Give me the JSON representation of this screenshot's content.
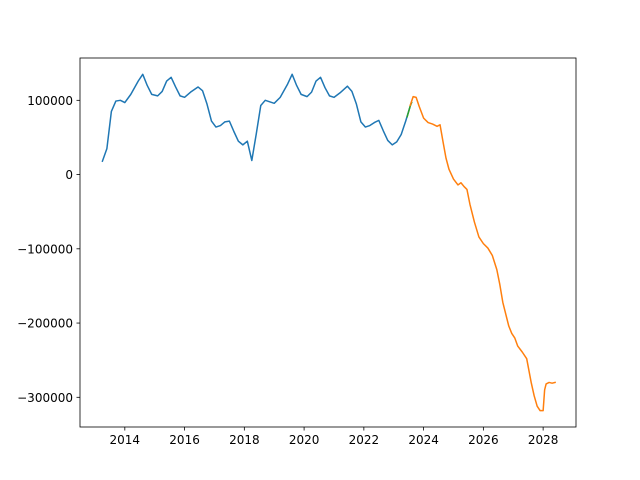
{
  "chart_data": {
    "type": "line",
    "title": "",
    "xlabel": "",
    "ylabel": "",
    "xlim": [
      2012.5,
      2029.1
    ],
    "ylim": [
      -340000,
      157000
    ],
    "grid": false,
    "x_ticks": [
      2014,
      2016,
      2018,
      2020,
      2022,
      2024,
      2026,
      2028
    ],
    "x_tick_labels": [
      "2014",
      "2016",
      "2018",
      "2020",
      "2022",
      "2024",
      "2026",
      "2028"
    ],
    "y_ticks": [
      100000,
      0,
      -100000,
      -200000,
      -300000
    ],
    "y_tick_labels": [
      "100000",
      "0",
      "−100000",
      "−200000",
      "−300000"
    ],
    "series": [
      {
        "color": "#1f77b4",
        "x": [
          2013.25,
          2013.4,
          2013.55,
          2013.7,
          2013.85,
          2014.0,
          2014.2,
          2014.45,
          2014.6,
          2014.75,
          2014.9,
          2015.1,
          2015.25,
          2015.4,
          2015.55,
          2015.7,
          2015.85,
          2016.0,
          2016.2,
          2016.45,
          2016.6,
          2016.75,
          2016.9,
          2017.05,
          2017.2,
          2017.35,
          2017.5,
          2017.65,
          2017.8,
          2017.95,
          2018.1,
          2018.25,
          2018.4,
          2018.55,
          2018.7,
          2018.85,
          2019.0,
          2019.2,
          2019.45,
          2019.6,
          2019.75,
          2019.9,
          2020.1,
          2020.25,
          2020.4,
          2020.55,
          2020.7,
          2020.85,
          2021.0,
          2021.2,
          2021.45,
          2021.6,
          2021.75,
          2021.9,
          2022.05,
          2022.2,
          2022.35,
          2022.5,
          2022.65,
          2022.8,
          2022.95,
          2023.1,
          2023.25,
          2023.4,
          2023.55
        ],
        "y": [
          18000,
          35000,
          85000,
          99000,
          100000,
          97000,
          108000,
          126000,
          135000,
          120000,
          108000,
          106000,
          112000,
          126000,
          131000,
          118000,
          106000,
          104000,
          111000,
          118000,
          113000,
          95000,
          72000,
          64000,
          66000,
          71000,
          72000,
          58000,
          45000,
          40000,
          45000,
          19000,
          55000,
          93000,
          100000,
          98000,
          96000,
          104000,
          122000,
          135000,
          120000,
          108000,
          105000,
          111000,
          126000,
          131000,
          117000,
          106000,
          104000,
          110000,
          119000,
          112000,
          95000,
          71000,
          64000,
          66000,
          70000,
          73000,
          59000,
          46000,
          40000,
          44000,
          54000,
          72000,
          92000
        ]
      },
      {
        "color": "#2ca02c",
        "x": [
          2023.45,
          2023.55,
          2023.6
        ],
        "y": [
          78000,
          92000,
          97000
        ]
      },
      {
        "color": "#ff7f0e",
        "x": [
          2023.55,
          2023.65,
          2023.75,
          2023.85,
          2024.0,
          2024.15,
          2024.3,
          2024.45,
          2024.55,
          2024.65,
          2024.75,
          2024.85,
          2025.0,
          2025.15,
          2025.25,
          2025.35,
          2025.45,
          2025.55,
          2025.7,
          2025.85,
          2026.0,
          2026.15,
          2026.3,
          2026.45,
          2026.55,
          2026.65,
          2026.75,
          2026.85,
          2026.95,
          2027.05,
          2027.15,
          2027.3,
          2027.45,
          2027.6,
          2027.7,
          2027.8,
          2027.9,
          2028.0,
          2028.05,
          2028.1,
          2028.2,
          2028.3,
          2028.4
        ],
        "y": [
          93000,
          105000,
          104000,
          92000,
          76000,
          70000,
          68000,
          65000,
          67000,
          44000,
          22000,
          7000,
          -6000,
          -14000,
          -11000,
          -16000,
          -20000,
          -40000,
          -64000,
          -84000,
          -93000,
          -99000,
          -109000,
          -128000,
          -148000,
          -172000,
          -188000,
          -204000,
          -214000,
          -220000,
          -231000,
          -239000,
          -248000,
          -280000,
          -298000,
          -312000,
          -318000,
          -318000,
          -290000,
          -282000,
          -280000,
          -281000,
          -280000
        ]
      }
    ]
  }
}
